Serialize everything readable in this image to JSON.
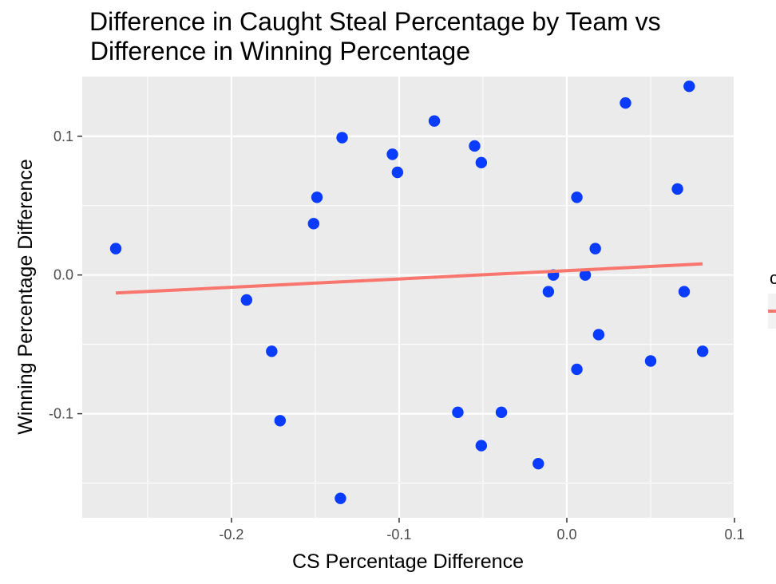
{
  "chart_data": {
    "type": "scatter",
    "title": "Difference in Caught Steal Percentage by Team vs\n Difference in Winning Percentage",
    "title_lines": [
      "Difference in Caught Steal Percentage by Team vs",
      " Difference in Winning Percentage"
    ],
    "xlabel": "CS Percentage Difference",
    "ylabel": "Winning Percentage Difference",
    "xlim": [
      -0.289,
      0.1
    ],
    "ylim": [
      -0.175,
      0.143
    ],
    "x_ticks": [
      -0.2,
      -0.1,
      0.0,
      0.1
    ],
    "x_tick_labels": [
      "-0.2",
      "-0.1",
      "0.0",
      "0.1"
    ],
    "y_ticks": [
      -0.1,
      0.0,
      0.1
    ],
    "y_tick_labels": [
      "-0.1",
      "0.0",
      "0.1"
    ],
    "grid": true,
    "legend_fragment": "c",
    "colors": {
      "panel": "#ebebeb",
      "grid": "#ffffff",
      "points": "#0a3cff",
      "trend_line": "#f8766d"
    },
    "series": [
      {
        "x": [
          -0.269,
          -0.191,
          -0.176,
          -0.171,
          -0.151,
          -0.149,
          -0.135,
          -0.134,
          -0.104,
          -0.101,
          -0.079,
          -0.065,
          -0.055,
          -0.051,
          -0.051,
          -0.039,
          -0.017,
          -0.011,
          -0.008,
          0.006,
          0.006,
          0.011,
          0.017,
          0.019,
          0.035,
          0.05,
          0.066,
          0.07,
          0.073,
          0.081
        ],
        "y": [
          0.019,
          -0.018,
          -0.055,
          -0.105,
          0.037,
          0.056,
          -0.161,
          0.099,
          0.087,
          0.074,
          0.111,
          -0.099,
          0.093,
          0.081,
          -0.123,
          -0.099,
          -0.136,
          -0.012,
          0.0,
          0.056,
          -0.068,
          0.0,
          0.019,
          -0.043,
          0.124,
          -0.062,
          0.062,
          -0.012,
          0.136,
          -0.055
        ]
      }
    ],
    "trend_line": {
      "x": [
        -0.269,
        0.081
      ],
      "y": [
        -0.013,
        0.008
      ]
    }
  }
}
